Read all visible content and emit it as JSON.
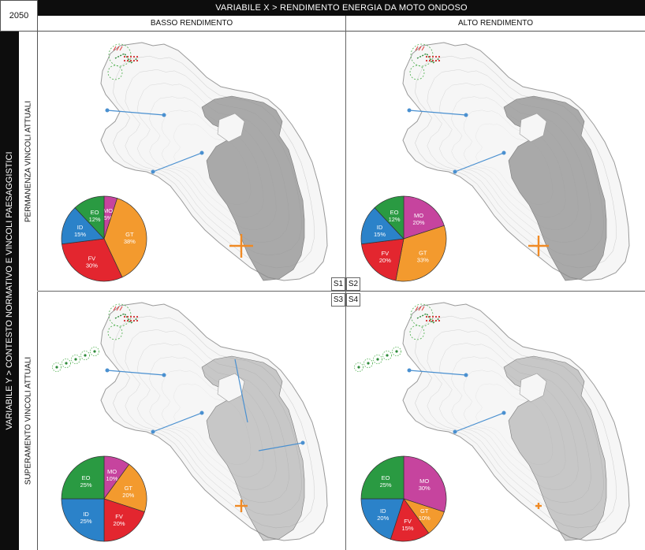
{
  "year": "2050",
  "variable_x": "VARIABILE X > RENDIMENTO ENERGIA DA MOTO ONDOSO",
  "variable_y": "VARIABILE Y > CONTESTO NORMATIVO E VINCOLI PAESAGGISTICI",
  "columns": [
    "BASSO RENDIMENTO",
    "ALTO RENDIMENTO"
  ],
  "rows": [
    "PERMANENZA VINCOLI ATTUALI",
    "SUPERAMENTO VINCOLI ATTUALI"
  ],
  "scenario_labels": [
    "S1",
    "S2",
    "S3",
    "S4"
  ],
  "colors": {
    "MO": "#c6449e",
    "GT": "#f39a2e",
    "FV": "#e3262f",
    "ID": "#2b82c9",
    "EO": "#2a9a42",
    "cross": "#f08a24",
    "link": "#4a90d0",
    "zone": "#b9b9b9"
  },
  "chart_data": [
    {
      "type": "pie",
      "scenario": "S1",
      "slices": [
        {
          "label": "MO",
          "text": "5%",
          "value": 5
        },
        {
          "label": "GT",
          "text": "38%",
          "value": 38
        },
        {
          "label": "FV",
          "text": "30%",
          "value": 30
        },
        {
          "label": "ID",
          "text": "15%",
          "value": 15
        },
        {
          "label": "EO",
          "text": "12%",
          "value": 12
        }
      ]
    },
    {
      "type": "pie",
      "scenario": "S2",
      "slices": [
        {
          "label": "MO",
          "text": "20%",
          "value": 20
        },
        {
          "label": "GT",
          "text": "33%",
          "value": 33
        },
        {
          "label": "FV",
          "text": "20%",
          "value": 20
        },
        {
          "label": "ID",
          "text": "15%",
          "value": 15
        },
        {
          "label": "EO",
          "text": "12%",
          "value": 12
        }
      ]
    },
    {
      "type": "pie",
      "scenario": "S3",
      "slices": [
        {
          "label": "MO",
          "text": "10%",
          "value": 10
        },
        {
          "label": "GT",
          "text": "20%",
          "value": 20
        },
        {
          "label": "FV",
          "text": "20%",
          "value": 20
        },
        {
          "label": "ID",
          "text": "25%",
          "value": 25
        },
        {
          "label": "EO",
          "text": "25%",
          "value": 25
        }
      ]
    },
    {
      "type": "pie",
      "scenario": "S4",
      "slices": [
        {
          "label": "MO",
          "text": "30%",
          "value": 30
        },
        {
          "label": "GT",
          "text": "10%",
          "value": 10
        },
        {
          "label": "FV",
          "text": "15%",
          "value": 15
        },
        {
          "label": "ID",
          "text": "20%",
          "value": 20
        },
        {
          "label": "EO",
          "text": "25%",
          "value": 25
        }
      ]
    }
  ]
}
